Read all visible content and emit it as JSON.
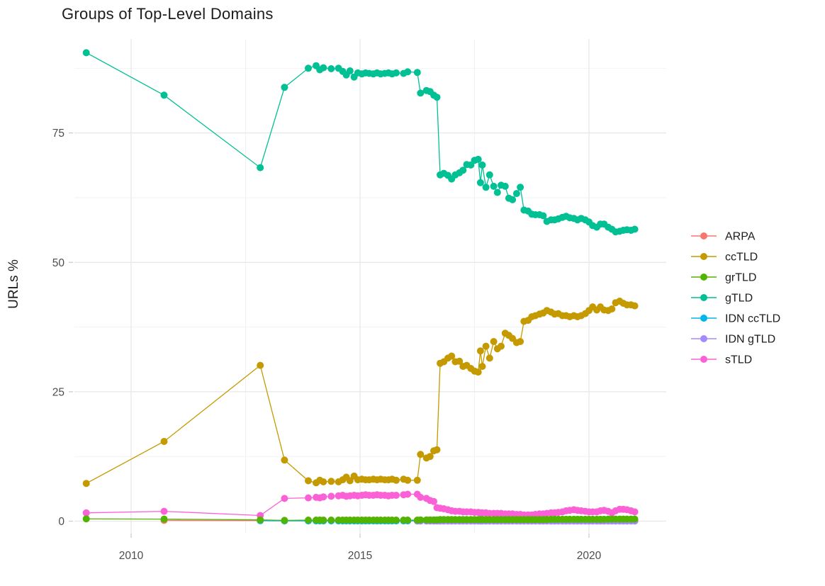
{
  "chart_data": {
    "type": "line",
    "title": "Groups of Top-Level Domains",
    "xlabel": "",
    "ylabel": "URLs %",
    "x_ticks": [
      2010,
      2015,
      2020
    ],
    "x_minor": [
      2012.5,
      2017.5
    ],
    "y_ticks": [
      0,
      25,
      50,
      75
    ],
    "y_minor": [
      12.5,
      37.5,
      62.5,
      87.5
    ],
    "xlim": [
      2008.8,
      2021.7
    ],
    "ylim": [
      -2.4,
      93.2
    ],
    "grid": "major+minor",
    "legend_position": "right",
    "x_grids": {
      "E": [
        2009.02,
        2010.72,
        2012.82,
        2013.35
      ],
      "A": [
        2013.87,
        2014.04,
        2014.12,
        2014.2,
        2014.37,
        2014.53,
        2014.62,
        2014.7,
        2014.78,
        2014.87,
        2014.95,
        2015.04,
        2015.12,
        2015.2,
        2015.29,
        2015.37,
        2015.45,
        2015.54,
        2015.62,
        2015.7,
        2015.79,
        2015.95,
        2016.04,
        2016.25
      ],
      "B": [
        2016.32,
        2016.45,
        2016.53,
        2016.61,
        2016.68
      ],
      "C": [
        2016.75,
        2016.83,
        2016.92,
        2017,
        2017.08,
        2017.17,
        2017.25,
        2017.33,
        2017.42,
        2017.5,
        2017.58,
        2017.63,
        2017.67,
        2017.75,
        2017.83,
        2017.92,
        2018,
        2018.08,
        2018.17,
        2018.25,
        2018.33,
        2018.42,
        2018.5,
        2018.58,
        2018.67,
        2018.75,
        2018.83,
        2018.92,
        2019,
        2019.08,
        2019.17,
        2019.25,
        2019.33,
        2019.42,
        2019.5,
        2019.58,
        2019.67,
        2019.75,
        2019.83,
        2019.92,
        2020,
        2020.08,
        2020.17,
        2020.25,
        2020.33,
        2020.42,
        2020.5,
        2020.58,
        2020.67,
        2020.75,
        2020.83,
        2020.92,
        2021
      ]
    },
    "series": [
      {
        "name": "ARPA",
        "color": "#F8766D",
        "x_pre": [
          2010.72,
          2012.82
        ],
        "x_parts": [
          "A",
          "B",
          "C"
        ],
        "y": [
          0.15
        ],
        "y_fill": 0.12
      },
      {
        "name": "ccTLD",
        "color": "#C49A00",
        "x_parts": [
          "E",
          "A",
          "B",
          "C"
        ],
        "y": [
          7.3,
          15.4,
          30.1,
          11.8,
          7.8,
          7.4,
          7.9,
          7.6,
          7.7,
          7.6,
          8,
          8.5,
          7.8,
          8.7,
          8,
          8.1,
          8,
          8,
          8.1,
          8,
          8.1,
          8,
          8,
          8.1,
          7.9,
          8.1,
          7.9,
          7.9,
          12.9,
          12.2,
          12.5,
          13.6,
          13.8,
          30.5,
          30.8,
          31.5,
          31.9,
          30.8,
          30.9,
          29.9,
          30.1,
          29.5,
          29,
          28.8,
          32.9,
          29.9,
          33.8,
          31.5,
          34.7,
          33.3,
          33.8,
          36.3,
          35.9,
          35.3,
          34.5,
          34.7,
          38.6,
          38.8,
          39.5,
          39.7,
          40,
          40.2,
          40.7,
          40.4,
          40,
          40.1,
          39.7,
          39.7,
          39.5,
          39.7,
          39.5,
          39.7,
          40.1,
          40.7,
          41.4,
          40.8,
          41.4,
          40.8,
          40.7,
          41,
          42.2,
          42.5,
          42.1,
          41.8,
          41.8,
          41.6
        ]
      },
      {
        "name": "grTLD",
        "color": "#53B400",
        "x_parts": [
          "E",
          "A",
          "B",
          "C"
        ],
        "y": [
          0.45,
          0.4,
          0.25,
          0.15,
          0.2,
          0.2,
          0.2,
          0.2,
          0.2,
          0.2,
          0.2,
          0.2,
          0.2,
          0.2,
          0.2,
          0.2,
          0.2,
          0.2,
          0.2,
          0.2,
          0.2,
          0.2,
          0.2,
          0.2,
          0.2,
          0.2,
          0.2,
          0.2,
          0.25,
          0.25,
          0.25,
          0.25,
          0.25,
          0.3,
          0.3,
          0.3,
          0.3,
          0.3,
          0.3,
          0.3,
          0.3,
          0.3,
          0.3,
          0.3,
          0.3,
          0.3,
          0.3,
          0.3,
          0.3,
          0.3,
          0.3,
          0.3,
          0.3,
          0.3,
          0.3,
          0.3,
          0.3,
          0.3,
          0.3,
          0.3,
          0.3,
          0.3,
          0.3,
          0.35,
          0.35,
          0.35,
          0.35,
          0.35,
          0.35,
          0.35,
          0.35,
          0.35,
          0.35,
          0.35,
          0.35,
          0.35,
          0.35,
          0.35,
          0.4,
          0.4,
          0.4,
          0.4,
          0.4,
          0.4,
          0.4,
          0.4
        ]
      },
      {
        "name": "gTLD",
        "color": "#00C094",
        "x_parts": [
          "E",
          "A",
          "B",
          "C"
        ],
        "y": [
          90.5,
          82.3,
          68.3,
          83.8,
          87.5,
          88,
          87.2,
          87.6,
          87.4,
          87.5,
          86.9,
          86.2,
          87,
          85.8,
          86.6,
          86.4,
          86.6,
          86.5,
          86.4,
          86.6,
          86.4,
          86.5,
          86.6,
          86.4,
          86.6,
          86.5,
          86.8,
          86.7,
          82.7,
          83.2,
          83,
          82.3,
          81.9,
          66.9,
          67.2,
          66.8,
          66.1,
          66.9,
          67.3,
          67.8,
          68.9,
          68.8,
          69.7,
          69.9,
          65.4,
          68.8,
          64.5,
          66.9,
          64.7,
          63.5,
          64.9,
          64.7,
          62.4,
          62.1,
          63.3,
          64.5,
          60.1,
          59.9,
          59.3,
          59.2,
          59.2,
          59,
          57.9,
          58.2,
          58.2,
          58.4,
          58.7,
          58.9,
          58.6,
          58.5,
          58.2,
          58.5,
          58.2,
          57.8,
          57.1,
          56.8,
          57.4,
          57.4,
          56.8,
          56.4,
          55.9,
          56,
          56.2,
          56.3,
          56.2,
          56.4
        ]
      },
      {
        "name": "IDN ccTLD",
        "color": "#00B6EB",
        "x_pre": [
          2012.82,
          2013.35
        ],
        "x_parts": [
          "A",
          "B",
          "C"
        ],
        "y": [
          0.1
        ],
        "y_fill": 0.06
      },
      {
        "name": "IDN gTLD",
        "color": "#A58AFF",
        "x_pre": [
          2016.25
        ],
        "x_parts": [
          "B",
          "C"
        ],
        "y": [],
        "y_fill": 0.03
      },
      {
        "name": "sTLD",
        "color": "#FB61D7",
        "x_parts": [
          "E",
          "A",
          "B",
          "C"
        ],
        "y": [
          1.6,
          1.9,
          1.1,
          4.4,
          4.5,
          4.6,
          4.5,
          4.7,
          4.8,
          4.9,
          5,
          4.8,
          4.9,
          5,
          4.9,
          5,
          5.1,
          5,
          5,
          5.1,
          5,
          5,
          4.9,
          5,
          5,
          5.1,
          5.2,
          5.2,
          4.6,
          4.4,
          4,
          3.8,
          2.6,
          2.5,
          2.4,
          2.2,
          2,
          1.9,
          1.9,
          1.8,
          1.8,
          1.8,
          1.7,
          1.7,
          1.6,
          1.6,
          1.6,
          1.5,
          1.5,
          1.5,
          1.5,
          1.4,
          1.4,
          1.4,
          1.3,
          1.3,
          1.2,
          1.2,
          1.2,
          1.3,
          1.4,
          1.4,
          1.5,
          1.6,
          1.6,
          1.7,
          1.8,
          2,
          2.1,
          2.2,
          2.1,
          2,
          1.9,
          1.8,
          1.8,
          1.8,
          2,
          2.1,
          1.9,
          1.6,
          2,
          2.3,
          2.3,
          2.2,
          2,
          1.8
        ]
      }
    ],
    "z_order": [
      "ARPA",
      "IDN ccTLD",
      "IDN gTLD",
      "sTLD",
      "ccTLD",
      "gTLD",
      "grTLD"
    ]
  },
  "style_colors": {
    "grid_major": "#E7E7E7",
    "grid_minor": "#F2F2F2",
    "axis_text": "#4D4D4D",
    "tick_mark": "#C9C9C9",
    "text": "#1C1C1C",
    "background": "#FFFFFF"
  }
}
